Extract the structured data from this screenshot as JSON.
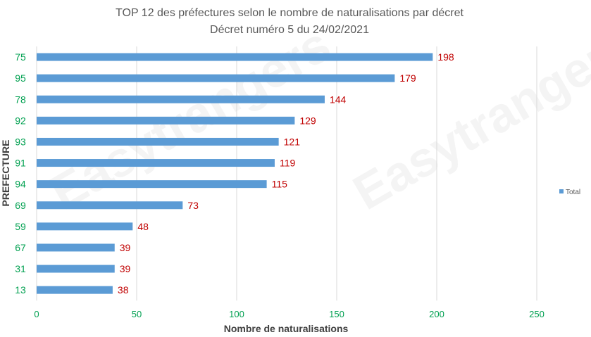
{
  "chart_data": {
    "type": "bar",
    "orientation": "horizontal",
    "title": "TOP 12 des préfectures selon le nombre de naturalisations par décret",
    "subtitle": "Décret numéro 5 du 24/02/2021",
    "categories": [
      "75",
      "95",
      "78",
      "92",
      "93",
      "91",
      "94",
      "69",
      "59",
      "67",
      "31",
      "13"
    ],
    "series": [
      {
        "name": "Total",
        "values": [
          198,
          179,
          144,
          129,
          121,
          119,
          115,
          73,
          48,
          39,
          39,
          38
        ]
      }
    ],
    "xlabel": "Nombre de naturalisations",
    "ylabel": "PREFECTURE",
    "xlim": [
      0,
      250
    ],
    "xticks": [
      0,
      50,
      100,
      150,
      200,
      250
    ],
    "grid": true,
    "legend_position": "right",
    "colors": {
      "bar": "#5b9bd5",
      "data_label": "#c00000",
      "category_label": "#00a050",
      "tick_label": "#00a050",
      "grid": "#d9d9d9"
    },
    "watermark": "Easytrangers"
  }
}
